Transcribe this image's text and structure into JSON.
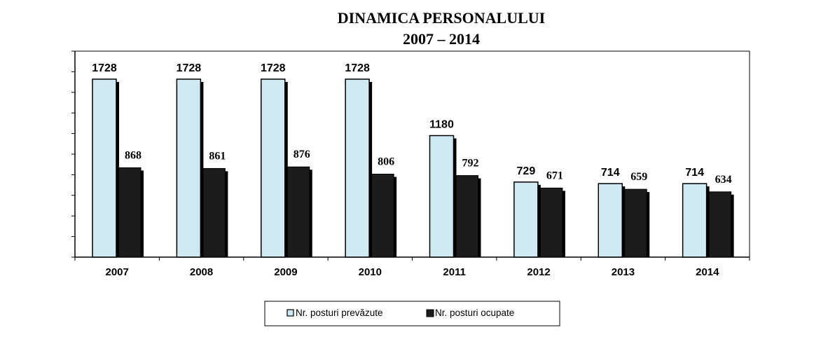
{
  "chart_data": {
    "type": "bar",
    "title": "DINAMICA PERSONALULUI",
    "subtitle": "2007 – 2014",
    "categories": [
      "2007",
      "2008",
      "2009",
      "2010",
      "2011",
      "2012",
      "2013",
      "2014"
    ],
    "series": [
      {
        "name": "Nr. posturi prevăzute",
        "values": [
          1728,
          1728,
          1728,
          1728,
          1180,
          729,
          714,
          714
        ]
      },
      {
        "name": "Nr. posturi ocupate",
        "values": [
          868,
          861,
          876,
          806,
          792,
          671,
          659,
          634
        ]
      }
    ],
    "ylim": [
      0,
      2000
    ],
    "xlabel": "",
    "ylabel": "",
    "grid": false,
    "legend": "bottom"
  },
  "colors": {
    "planned": "#cfeaf2",
    "occupied": "#1c1c1c",
    "shadow": "#000000",
    "frame": "#000000"
  }
}
